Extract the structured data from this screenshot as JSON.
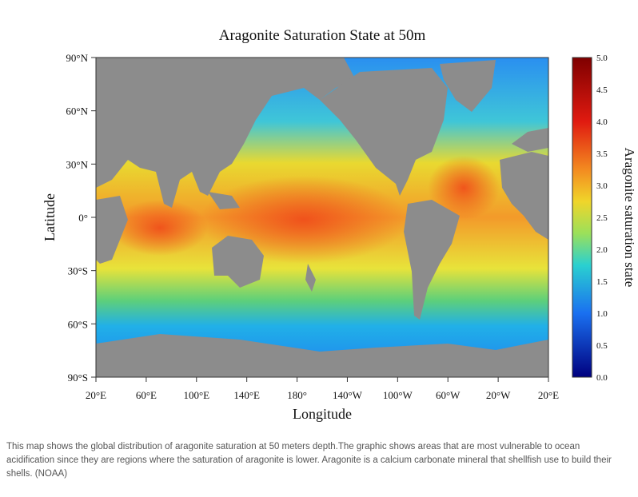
{
  "map": {
    "title": "Aragonite Saturation State at 50m",
    "x_label": "Longitude",
    "y_label": "Latitude",
    "lon_ticks": [
      "20°E",
      "60°E",
      "100°E",
      "140°E",
      "180°",
      "140°W",
      "100°W",
      "60°W",
      "20°W",
      "20°E"
    ],
    "lat_ticks": [
      "90°N",
      "60°N",
      "30°N",
      "0°",
      "30°S",
      "60°S",
      "90°S"
    ],
    "colorbar": {
      "label": "Aragonite saturation state",
      "ticks": [
        "5.0",
        "4.5",
        "4.0",
        "3.5",
        "3.0",
        "2.5",
        "2.0",
        "1.5",
        "1.0",
        "0.5",
        "0.0"
      ]
    }
  },
  "caption": "This map shows the global distribution of aragonite saturation at 50 meters depth.The graphic shows areas that are most vulnerable to ocean acidification since they are regions where the saturation of aragonite is lower. Aragonite is a calcium carbonate mineral that shellfish use to build their shells. (NOAA)"
}
